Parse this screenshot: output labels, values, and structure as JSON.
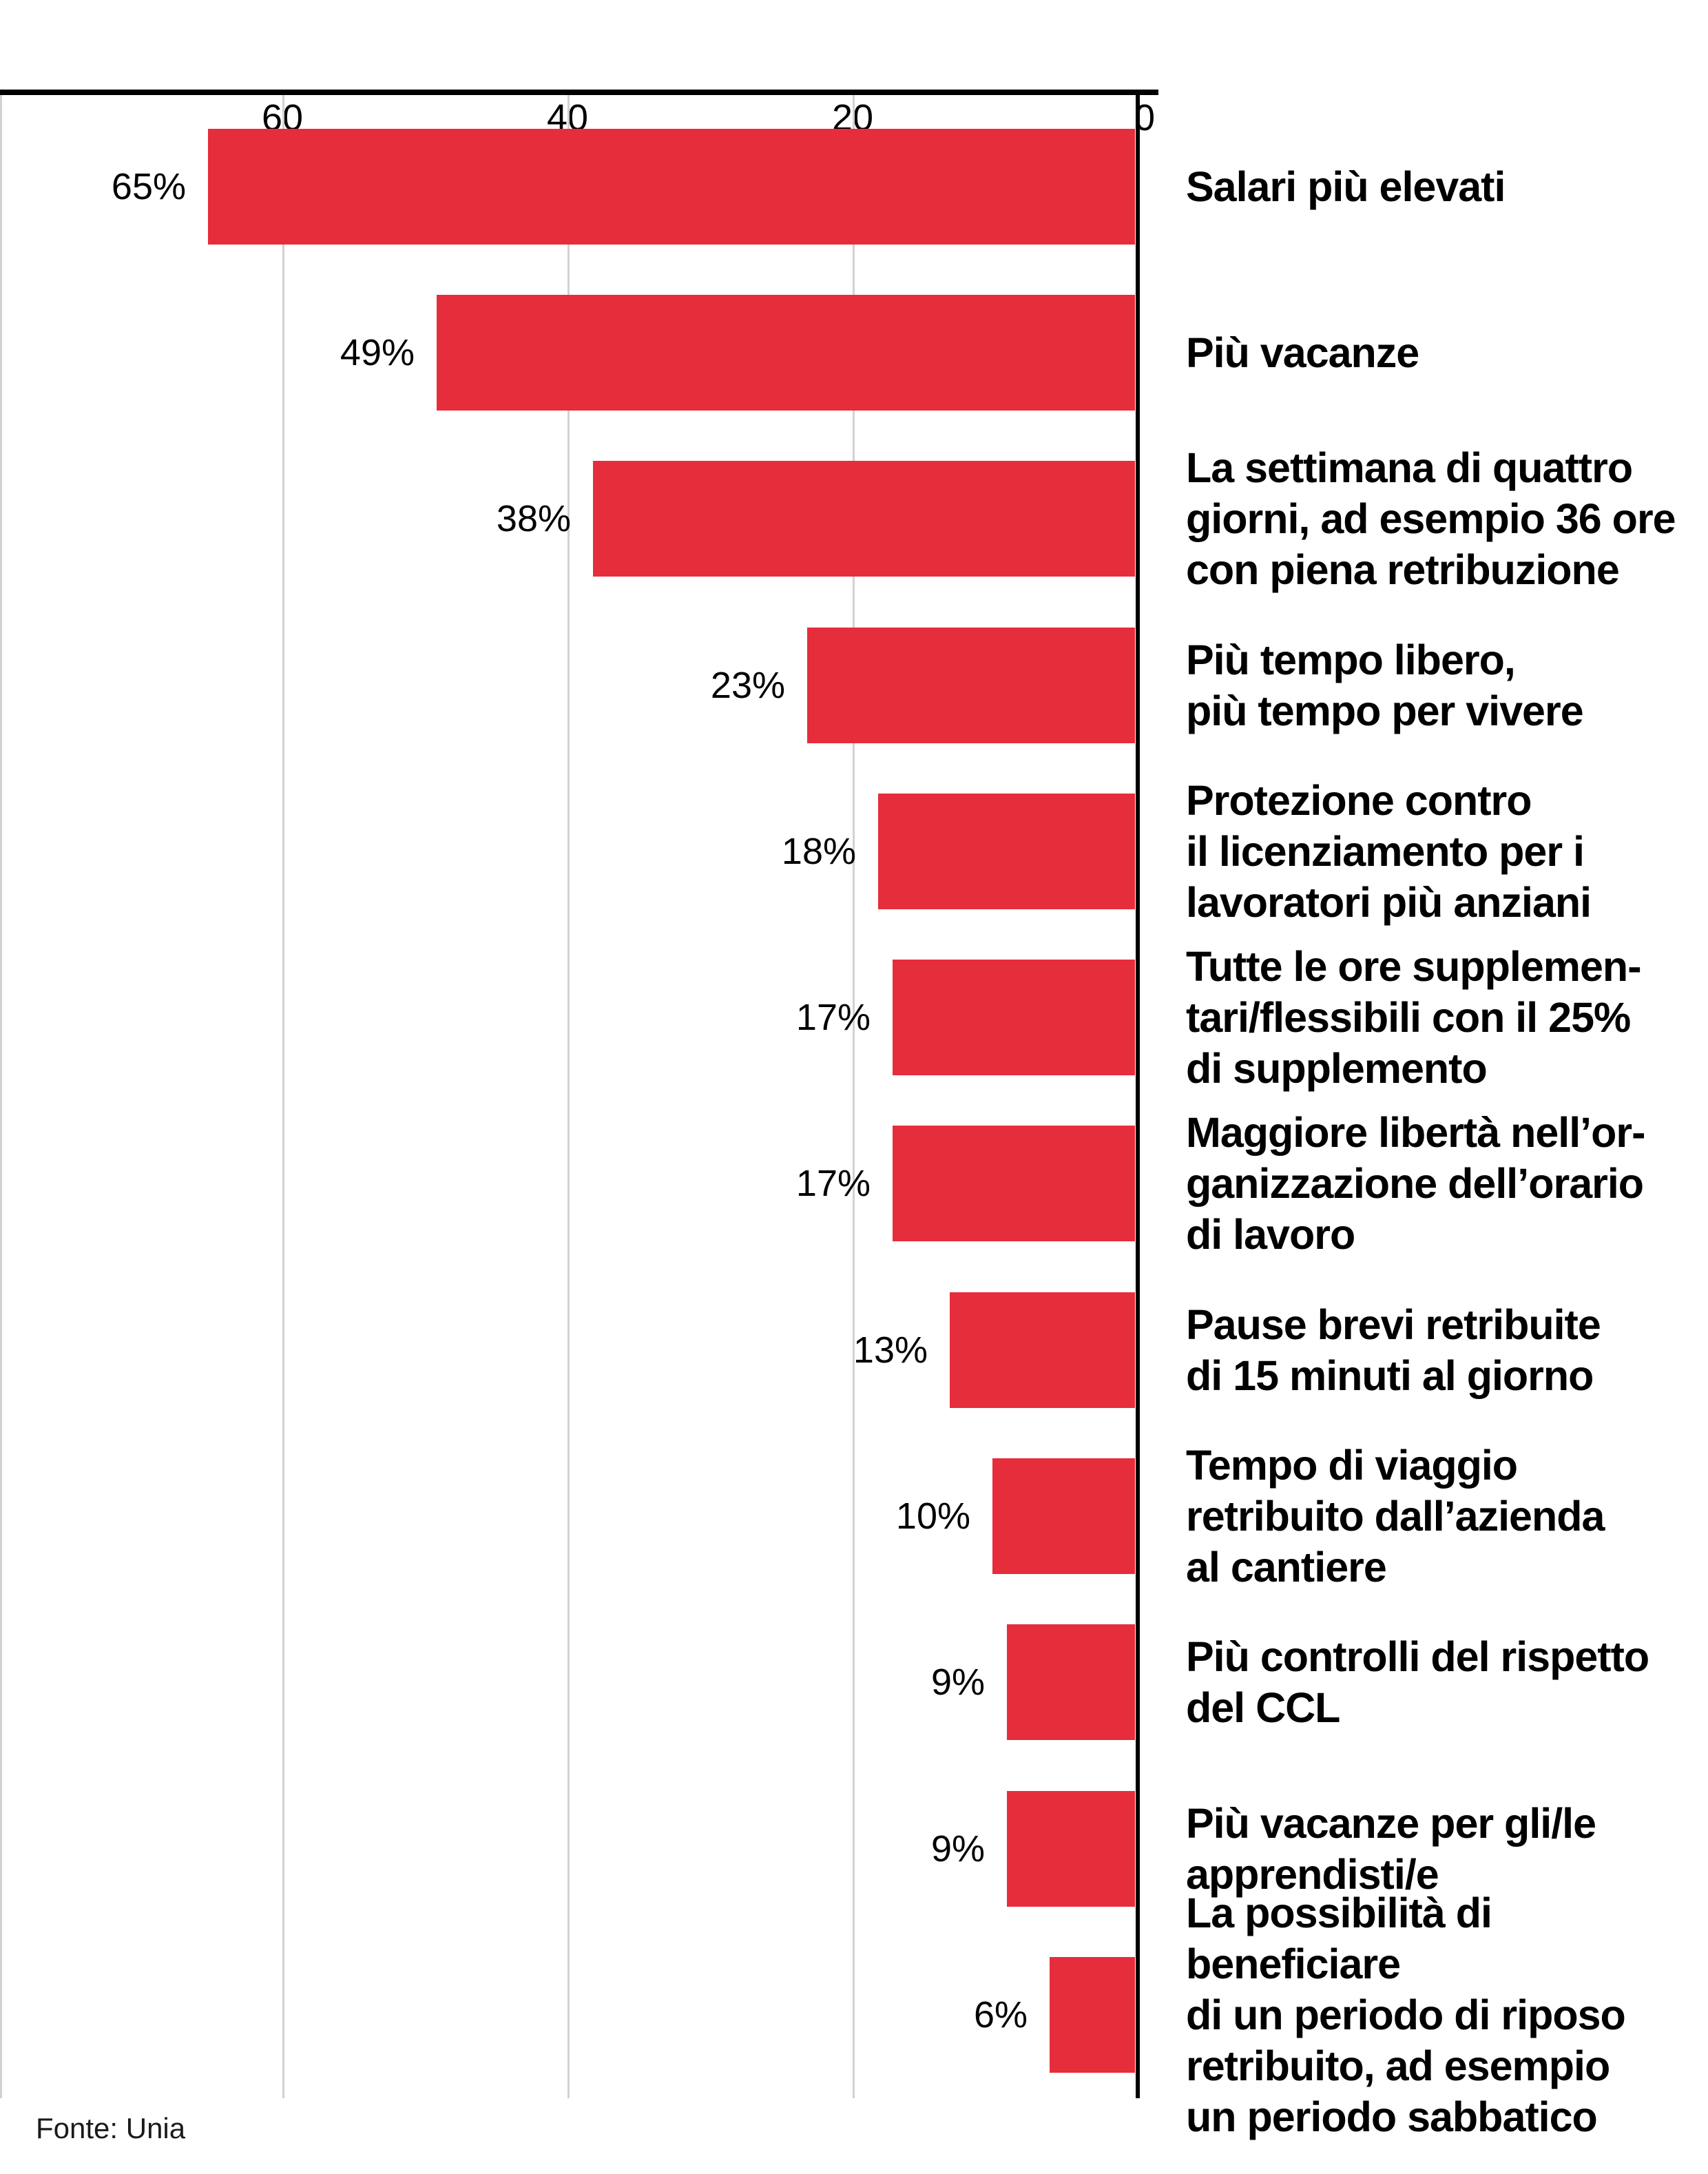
{
  "chart_data": {
    "type": "bar",
    "orientation": "horizontal_right_to_left",
    "unit": "%",
    "categories": [
      "Salari più elevati",
      "Più vacanze",
      "La settimana di quattro\ngiorni, ad esempio 36 ore\ncon piena retribuzione",
      "Più tempo libero,\npiù tempo per vivere",
      "Protezione contro\nil licenziamento per i\nlavoratori più anziani",
      "Tutte le ore supplemen-\ntari/flessibili con il 25%\ndi supplemento",
      "Maggiore libertà nell’or-\nganizzazione dell’orario\ndi lavoro",
      "Pause brevi retribuite\ndi 15 minuti al giorno",
      "Tempo di viaggio\nretribuito dall’azienda\nal cantiere",
      "Più controlli del rispetto\ndel CCL",
      "Più vacanze per gli/le\napprendisti/e",
      "La possibilità di beneficiare\ndi un periodo di riposo\nretribuito, ad esempio\nun periodo sabbatico"
    ],
    "values": [
      65,
      49,
      38,
      23,
      18,
      17,
      17,
      13,
      10,
      9,
      9,
      6
    ],
    "value_labels": [
      "65%",
      "49%",
      "38%",
      "23%",
      "18%",
      "17%",
      "17%",
      "13%",
      "10%",
      "9%",
      "9%",
      "6%"
    ],
    "x_axis": {
      "side": "top",
      "ticks": [
        "60",
        "40",
        "20",
        "0"
      ],
      "tick_values": [
        60,
        40,
        20,
        0
      ],
      "range_max": 79
    },
    "grid": true,
    "legend": false,
    "source": "Fonte: Unia",
    "colors": {
      "bar": "#e62d3c",
      "grid": "#d2d2d2",
      "axis": "#000000",
      "text": "#000000"
    }
  }
}
